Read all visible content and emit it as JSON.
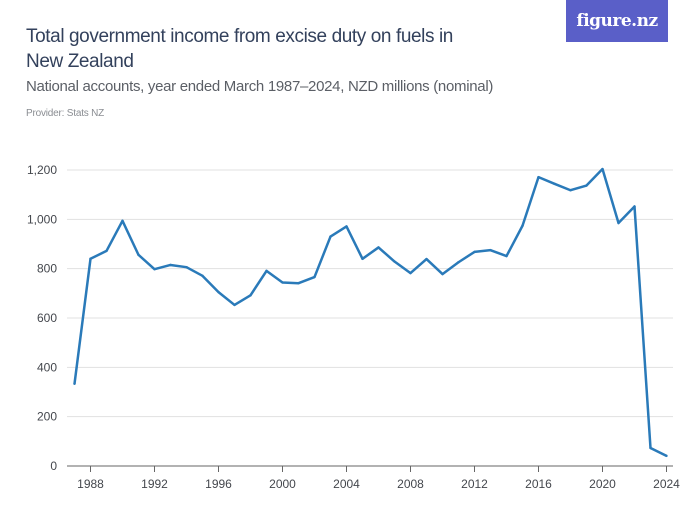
{
  "header": {
    "title": "Total government income from excise duty on fuels in New Zealand",
    "subtitle": "National accounts, year ended March 1987–2024, NZD millions (nominal)",
    "provider": "Provider: Stats NZ",
    "logo_text": "figure.nz",
    "logo_color": "#5a5fc8"
  },
  "chart_data": {
    "type": "line",
    "title": "Total government income from excise duty on fuels in New Zealand",
    "subtitle": "National accounts, year ended March 1987–2024, NZD millions (nominal)",
    "xlabel": "",
    "ylabel": "",
    "x": [
      1987,
      1988,
      1989,
      1990,
      1991,
      1992,
      1993,
      1994,
      1995,
      1996,
      1997,
      1998,
      1999,
      2000,
      2001,
      2002,
      2003,
      2004,
      2005,
      2006,
      2007,
      2008,
      2009,
      2010,
      2011,
      2012,
      2013,
      2014,
      2015,
      2016,
      2017,
      2018,
      2019,
      2020,
      2021,
      2022,
      2023,
      2024
    ],
    "values": [
      333,
      840,
      872,
      994,
      856,
      798,
      815,
      806,
      771,
      705,
      653,
      692,
      791,
      744,
      741,
      766,
      930,
      971,
      840,
      886,
      829,
      782,
      839,
      778,
      826,
      868,
      875,
      851,
      974,
      1171,
      1144,
      1118,
      1137,
      1204,
      985,
      1052,
      73,
      41
    ],
    "xlim": [
      1987,
      2024
    ],
    "ylim": [
      0,
      1200
    ],
    "x_ticks": [
      "1988",
      "1992",
      "1996",
      "2000",
      "2004",
      "2008",
      "2012",
      "2016",
      "2020",
      "2024"
    ],
    "y_ticks": [
      "0",
      "200",
      "400",
      "600",
      "800",
      "1,000",
      "1,200"
    ],
    "grid": "horizontal",
    "line_color": "#2a7ab9"
  }
}
